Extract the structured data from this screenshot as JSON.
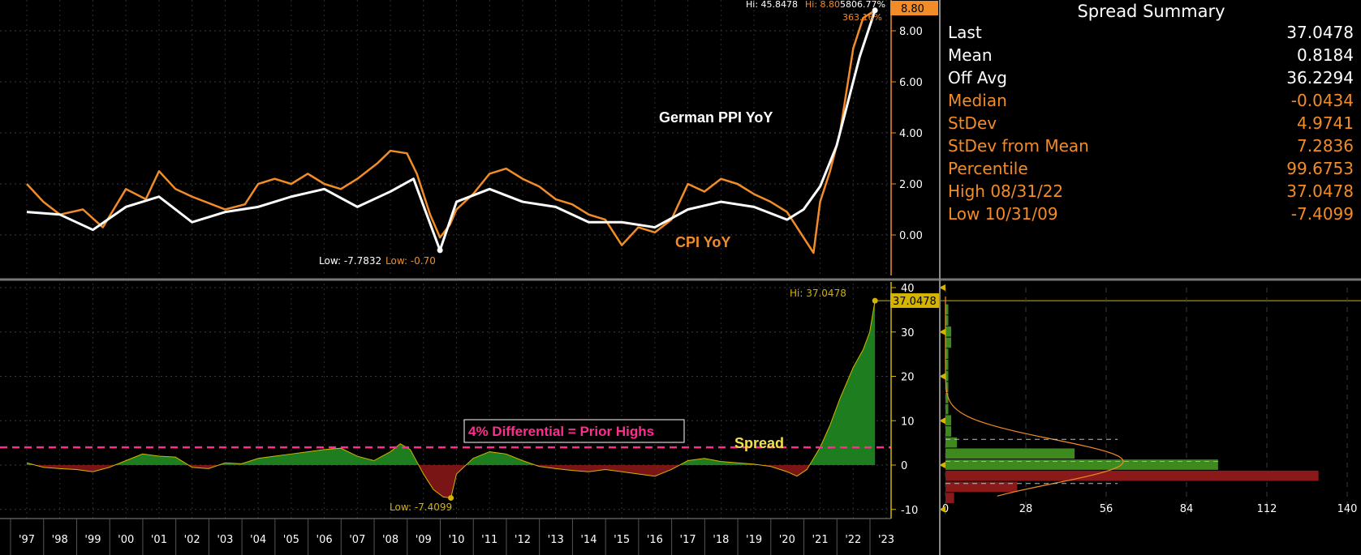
{
  "summary": {
    "title": "Spread Summary",
    "rows": [
      {
        "label": "Last",
        "value": "37.0478",
        "color": "#ffffff"
      },
      {
        "label": "Mean",
        "value": "0.8184",
        "color": "#ffffff"
      },
      {
        "label": "Off Avg",
        "value": "36.2294",
        "color": "#ffffff"
      },
      {
        "label": "Median",
        "value": "-0.0434",
        "color": "#f28c28"
      },
      {
        "label": "StDev",
        "value": "4.9741",
        "color": "#f28c28"
      },
      {
        "label": "StDev from Mean",
        "value": "7.2836",
        "color": "#f28c28"
      },
      {
        "label": "Percentile",
        "value": "99.6753",
        "color": "#f28c28"
      },
      {
        "label": "High 08/31/22",
        "value": "37.0478",
        "color": "#f28c28"
      },
      {
        "label": "Low 10/31/09",
        "value": "-7.4099",
        "color": "#f28c28"
      }
    ]
  },
  "colors": {
    "ppi": "#ffffff",
    "cpi": "#f28c28",
    "spread_pos": "#1e7d1e",
    "spread_neg": "#7a1515",
    "highlight_line": "#ff2d8f",
    "axis_accent": "#f28c28",
    "spread_accent": "#d4b400"
  },
  "chart_data": [
    {
      "type": "line",
      "series": [
        {
          "name": "German PPI YoY",
          "color": "#ffffff",
          "x": [
            1997,
            1998,
            1999,
            2000,
            2001,
            2002,
            2003,
            2004,
            2005,
            2006,
            2007,
            2008,
            2008.7,
            2009.5,
            2010,
            2011,
            2012,
            2013,
            2014,
            2015,
            2016,
            2017,
            2018,
            2019,
            2020,
            2020.5,
            2021,
            2021.5,
            2022,
            2022.2,
            2022.66
          ],
          "values": [
            0.9,
            0.8,
            0.2,
            1.1,
            1.5,
            0.5,
            0.9,
            1.1,
            1.5,
            1.8,
            1.1,
            1.7,
            2.2,
            -0.6,
            1.3,
            1.8,
            1.3,
            1.1,
            0.5,
            0.5,
            0.3,
            1.0,
            1.3,
            1.1,
            0.6,
            1.0,
            1.9,
            3.5,
            6.0,
            7.0,
            8.8
          ]
        },
        {
          "name": "CPI YoY",
          "color": "#f28c28",
          "x": [
            1997,
            1997.5,
            1998,
            1998.7,
            1999.3,
            2000,
            2000.6,
            2001,
            2001.5,
            2002,
            2002.6,
            2003,
            2003.6,
            2004,
            2004.5,
            2005,
            2005.5,
            2006,
            2006.5,
            2007,
            2007.6,
            2008,
            2008.5,
            2008.8,
            2009.2,
            2009.5,
            2009.8,
            2010,
            2010.5,
            2011,
            2011.5,
            2012,
            2012.5,
            2013,
            2013.5,
            2014,
            2014.5,
            2015,
            2015.5,
            2016,
            2016.5,
            2017,
            2017.5,
            2018,
            2018.5,
            2019,
            2019.5,
            2020,
            2020.5,
            2020.8,
            2021,
            2021.3,
            2021.6,
            2022,
            2022.3,
            2022.66
          ],
          "values": [
            2.0,
            1.3,
            0.8,
            1.0,
            0.3,
            1.8,
            1.4,
            2.5,
            1.8,
            1.5,
            1.2,
            1.0,
            1.2,
            2.0,
            2.2,
            2.0,
            2.4,
            2.0,
            1.8,
            2.2,
            2.8,
            3.3,
            3.2,
            2.4,
            0.8,
            -0.1,
            0.4,
            1.0,
            1.6,
            2.4,
            2.6,
            2.2,
            1.9,
            1.4,
            1.2,
            0.8,
            0.6,
            -0.4,
            0.3,
            0.1,
            0.6,
            2.0,
            1.7,
            2.2,
            2.0,
            1.6,
            1.3,
            0.9,
            -0.1,
            -0.7,
            1.3,
            2.5,
            4.0,
            7.3,
            8.5,
            8.8
          ]
        }
      ],
      "annotations": [
        "German PPI YoY",
        "CPI YoY",
        "Low: -7.7832",
        "Low: -0.70",
        "Hi: 45.8478",
        "Hi: 8.80",
        "5806.77%",
        "363.16%",
        "8.80"
      ],
      "ylim": [
        -1.5,
        9.2
      ],
      "yticks": [
        "8.00",
        "6.00",
        "4.00",
        "2.00",
        "0.00"
      ]
    },
    {
      "type": "area",
      "series": [
        {
          "name": "Spread",
          "x": [
            1997,
            1997.5,
            1998,
            1998.5,
            1999,
            1999.5,
            2000,
            2000.5,
            2001,
            2001.5,
            2002,
            2002.5,
            2003,
            2003.5,
            2004,
            2004.5,
            2005,
            2005.5,
            2006,
            2006.5,
            2007,
            2007.5,
            2008,
            2008.3,
            2008.6,
            2009,
            2009.3,
            2009.6,
            2009.83,
            2010,
            2010.5,
            2011,
            2011.5,
            2012,
            2012.5,
            2013,
            2013.5,
            2014,
            2014.5,
            2015,
            2015.5,
            2016,
            2016.5,
            2017,
            2017.5,
            2018,
            2018.5,
            2019,
            2019.5,
            2020,
            2020.3,
            2020.6,
            2021,
            2021.3,
            2021.6,
            2022,
            2022.3,
            2022.5,
            2022.66
          ],
          "values": [
            0.5,
            -0.5,
            -0.8,
            -1.0,
            -1.5,
            -0.5,
            1.0,
            2.5,
            2.0,
            1.8,
            -0.5,
            -0.8,
            0.5,
            0.3,
            1.5,
            2.0,
            2.5,
            3.0,
            3.5,
            3.8,
            2.0,
            1.0,
            3.0,
            4.8,
            3.5,
            -2.0,
            -5.5,
            -7.2,
            -7.4099,
            -2.0,
            1.5,
            3.0,
            2.5,
            1.0,
            -0.3,
            -0.8,
            -1.2,
            -1.5,
            -1.0,
            -1.5,
            -2.0,
            -2.5,
            -1.0,
            1.0,
            1.5,
            0.8,
            0.5,
            0.2,
            -0.3,
            -1.5,
            -2.5,
            -1.0,
            4.0,
            9.0,
            15.0,
            22.0,
            26.0,
            30.0,
            37.0478
          ]
        }
      ],
      "annotations": [
        "Spread",
        "4% Differential = Prior Highs",
        "Hi: 37.0478",
        "Low: -7.4099",
        "37.0478"
      ],
      "reference_line": 4,
      "ylim": [
        -12,
        41
      ],
      "yticks": [
        "40",
        "30",
        "20",
        "10",
        "0",
        "-10"
      ],
      "xticks": [
        "'97",
        "'98",
        "'99",
        "'00",
        "'01",
        "'02",
        "'03",
        "'04",
        "'05",
        "'06",
        "'07",
        "'08",
        "'09",
        "'10",
        "'11",
        "'12",
        "'13",
        "'14",
        "'15",
        "'16",
        "'17",
        "'18",
        "'19",
        "'20",
        "'21",
        "'22",
        "'23"
      ]
    },
    {
      "type": "bar",
      "orientation": "horizontal",
      "title": "",
      "bins_center": [
        -7.5,
        -5,
        -2.5,
        0,
        2.5,
        5,
        7.5,
        10,
        12.5,
        15,
        17.5,
        20,
        22.5,
        25,
        27.5,
        30,
        32.5,
        35
      ],
      "counts": [
        3,
        25,
        130,
        95,
        45,
        4,
        2,
        2,
        1,
        1,
        1,
        1,
        1,
        1,
        2,
        2,
        1,
        1
      ],
      "xticks": [
        "0",
        "28",
        "56",
        "84",
        "112",
        "140"
      ],
      "xlim": [
        0,
        140
      ]
    }
  ]
}
